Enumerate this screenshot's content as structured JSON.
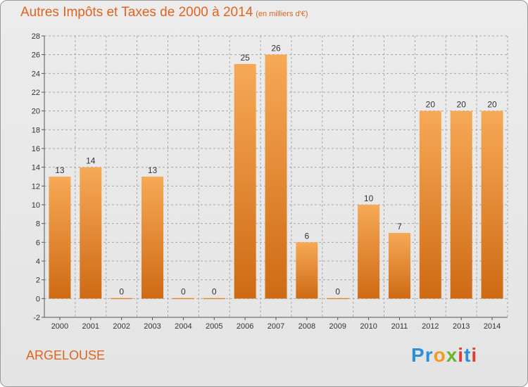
{
  "title": "Autres Impôts et Taxes de 2000 à 2014",
  "subtitle": "(en milliers d'€)",
  "commune": "ARGELOUSE",
  "logo": {
    "letters": [
      "P",
      "r",
      "o",
      "x",
      "i",
      "t",
      "i"
    ],
    "colors": [
      "#2e8fd8",
      "#2e8fd8",
      "#f29a1d",
      "#6ab52e",
      "#e03c31",
      "#2e8fd8",
      "#e03c31"
    ]
  },
  "colors": {
    "bar_light": "#f6a956",
    "bar_dark": "#cf6a14",
    "title": "#e2631e",
    "grid": "#a8a8a8"
  },
  "chart_data": {
    "type": "bar",
    "categories": [
      "2000",
      "2001",
      "2002",
      "2003",
      "2004",
      "2005",
      "2006",
      "2007",
      "2008",
      "2009",
      "2010",
      "2011",
      "2012",
      "2013",
      "2014"
    ],
    "values": [
      13,
      14,
      0,
      13,
      0,
      0,
      25,
      26,
      6,
      0,
      10,
      7,
      20,
      20,
      20
    ],
    "title": "Autres Impôts et Taxes de 2000 à 2014",
    "ylim": [
      -2,
      28
    ],
    "yticks": [
      -2,
      0,
      2,
      4,
      6,
      8,
      10,
      12,
      14,
      16,
      18,
      20,
      22,
      24,
      26,
      28
    ],
    "grid": "horizontal dashed",
    "data_labels": true
  }
}
